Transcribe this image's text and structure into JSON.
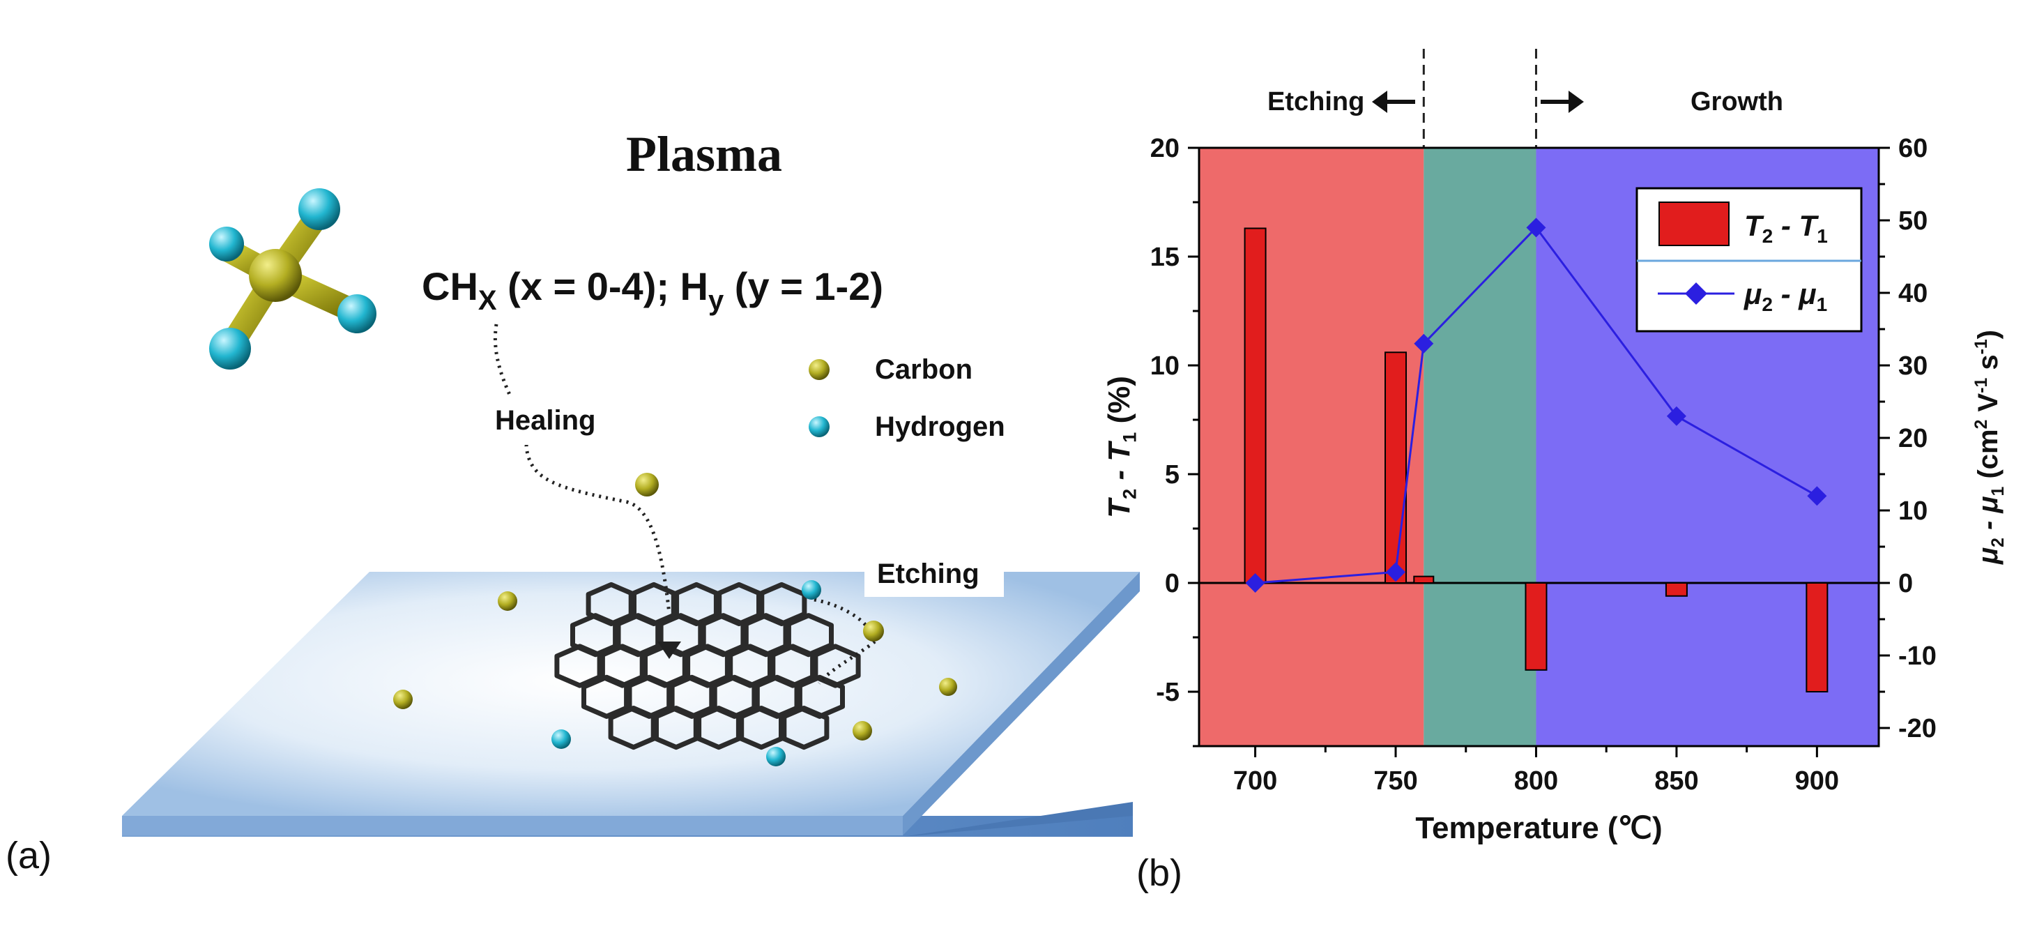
{
  "panel_a": {
    "label": "(a)",
    "title": "Plasma",
    "formula": {
      "ch": "CH",
      "ch_sub": "X",
      "ch_range": " (x = 0-4); H",
      "h_sub": "y",
      "h_range": " (y = 1-2)"
    },
    "legend": [
      {
        "name": "Carbon",
        "color": "#a8a418"
      },
      {
        "name": "Hydrogen",
        "color": "#23b6cf"
      }
    ],
    "labels": {
      "healing": "Healing",
      "etching": "Etching"
    },
    "colors": {
      "substrate_top": "#dbe8f6",
      "substrate_edge": "#6f9cd2",
      "carbon": "#a8a418",
      "hydrogen": "#23b6cf",
      "lattice": "#2b2b2b"
    }
  },
  "panel_b": {
    "label": "(b)",
    "header": {
      "left": "Etching",
      "right": "Growth"
    },
    "regions": [
      {
        "from": 680,
        "to": 760,
        "color": "#ee6a6a"
      },
      {
        "from": 760,
        "to": 800,
        "color": "#69aa9f"
      },
      {
        "from": 800,
        "to": 922,
        "color": "#7c6cf5"
      }
    ],
    "boundaries": [
      760,
      800
    ]
  },
  "chart_data": {
    "type": "bar+line",
    "xlabel": "Temperature (℃)",
    "x_ticks": [
      700,
      750,
      800,
      850,
      900
    ],
    "xlim": [
      680,
      922
    ],
    "y_left": {
      "label_parts": [
        "T",
        "2",
        " - T",
        "1",
        " (%)"
      ],
      "ticks": [
        -5,
        0,
        5,
        10,
        15,
        20
      ],
      "lim": [
        -7.5,
        20
      ]
    },
    "y_right": {
      "label_parts": [
        "μ",
        "2",
        " - μ",
        "1",
        " (cm",
        "2",
        " V",
        "-1",
        " s",
        "-1",
        ")"
      ],
      "ticks": [
        -20,
        -10,
        0,
        10,
        20,
        30,
        40,
        50,
        60
      ],
      "lim": [
        -22.5,
        60
      ]
    },
    "bars": {
      "name": "T2 - T1",
      "legend_parts": [
        "T",
        "2",
        " - T",
        "1"
      ],
      "color": "#e11d1d",
      "x": [
        700,
        750,
        760,
        800,
        850,
        900
      ],
      "values": [
        16.3,
        10.6,
        0.3,
        -4.0,
        -0.6,
        -5.0
      ]
    },
    "line": {
      "name": "μ2 - μ1",
      "legend_parts": [
        "μ",
        "2",
        " - μ",
        "1"
      ],
      "color": "#2b1fe0",
      "x": [
        700,
        750,
        760,
        800,
        850,
        900
      ],
      "values": [
        0,
        1.5,
        33,
        49,
        23,
        12
      ]
    }
  }
}
